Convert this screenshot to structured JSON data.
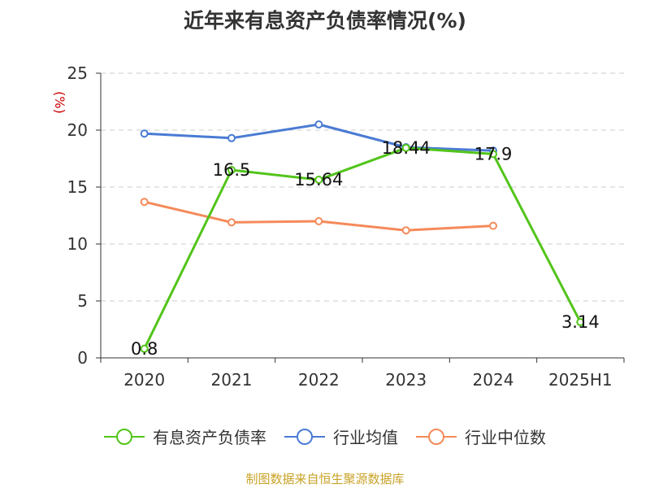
{
  "title": "近年来有息资产负债率情况(%)",
  "source": "制图数据来自恒生聚源数据库",
  "chart_data": {
    "type": "line",
    "title": "近年来有息资产负债率情况(%)",
    "ylabel": "(%)",
    "xlabel": "",
    "categories": [
      "2020",
      "2021",
      "2022",
      "2023",
      "2024",
      "2025H1"
    ],
    "ylim": [
      0,
      25
    ],
    "yticks": [
      0,
      5,
      10,
      15,
      20,
      25
    ],
    "grid": true,
    "legend_position": "bottom",
    "series": [
      {
        "name": "有息资产负债率",
        "color": "#52c41a",
        "values": [
          0.8,
          16.5,
          15.64,
          18.44,
          17.9,
          3.14
        ],
        "labels": [
          "0.8",
          "16.5",
          "15.64",
          "18.44",
          "17.9",
          "3.14"
        ]
      },
      {
        "name": "行业均值",
        "color": "#4a7bd4",
        "values": [
          19.7,
          19.3,
          20.5,
          18.5,
          18.2,
          null
        ]
      },
      {
        "name": "行业中位数",
        "color": "#f58a5a",
        "values": [
          13.7,
          11.9,
          12.0,
          11.2,
          11.6,
          null
        ]
      }
    ]
  }
}
